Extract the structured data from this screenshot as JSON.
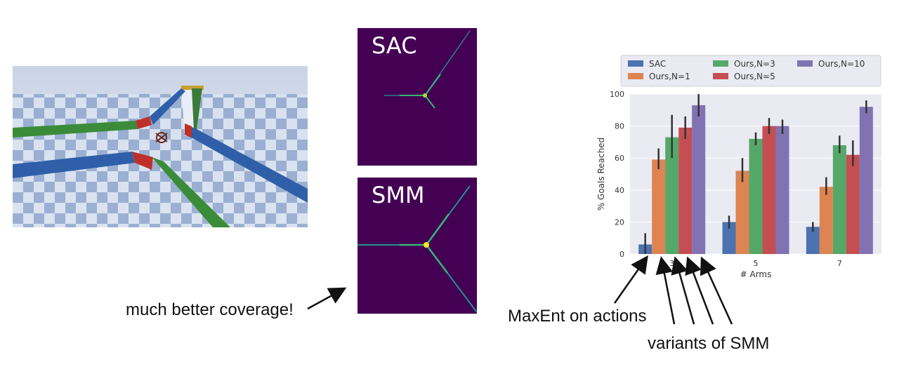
{
  "heatmaps": [
    {
      "label": "SAC"
    },
    {
      "label": "SMM"
    }
  ],
  "annotations": {
    "coverage": "much better coverage!",
    "maxent": "MaxEnt on actions",
    "variants": "variants of SMM"
  },
  "colors": {
    "heatmap_bg": "#440154",
    "SAC": "#4c72b0",
    "Ours,N=1": "#dd8452",
    "Ours,N=3": "#55a868",
    "Ours,N=5": "#c44e52",
    "Ours,N=10": "#8172b3"
  },
  "chart_data": {
    "type": "bar",
    "categories": [
      "3",
      "5",
      "7"
    ],
    "xlabel": "# Arms",
    "ylabel": "% Goals Reached",
    "ylim": [
      0,
      100
    ],
    "yticks": [
      0,
      20,
      40,
      60,
      80,
      100
    ],
    "grid": true,
    "legend_position": "top",
    "series": [
      {
        "name": "SAC",
        "values": [
          6,
          null,
          17
        ],
        "err_low": [
          0,
          null,
          14
        ],
        "err_high": [
          13,
          null,
          20
        ],
        "color": "#4c72b0"
      },
      {
        "name": "Ours,N=1",
        "values": [
          59,
          52,
          42
        ],
        "err_low": [
          53,
          45,
          37
        ],
        "err_high": [
          66,
          60,
          48
        ],
        "color": "#dd8452"
      },
      {
        "name": "Ours,N=3",
        "values": [
          73,
          72,
          68
        ],
        "err_low": [
          60,
          68,
          63
        ],
        "err_high": [
          87,
          76,
          74
        ],
        "color": "#55a868"
      },
      {
        "name": "Ours,N=5",
        "values": [
          79,
          80,
          62
        ],
        "err_low": [
          72,
          75,
          55
        ],
        "err_high": [
          86,
          85,
          71
        ],
        "color": "#c44e52"
      },
      {
        "name": "Ours,N=10",
        "values": [
          93,
          80,
          92
        ],
        "err_low": [
          86,
          75,
          88
        ],
        "err_high": [
          100,
          84,
          96
        ],
        "color": "#8172b3"
      }
    ],
    "extra_bars": [
      {
        "category": "5",
        "series": "SAC",
        "value": 20,
        "err_low": 16,
        "err_high": 24
      }
    ]
  }
}
